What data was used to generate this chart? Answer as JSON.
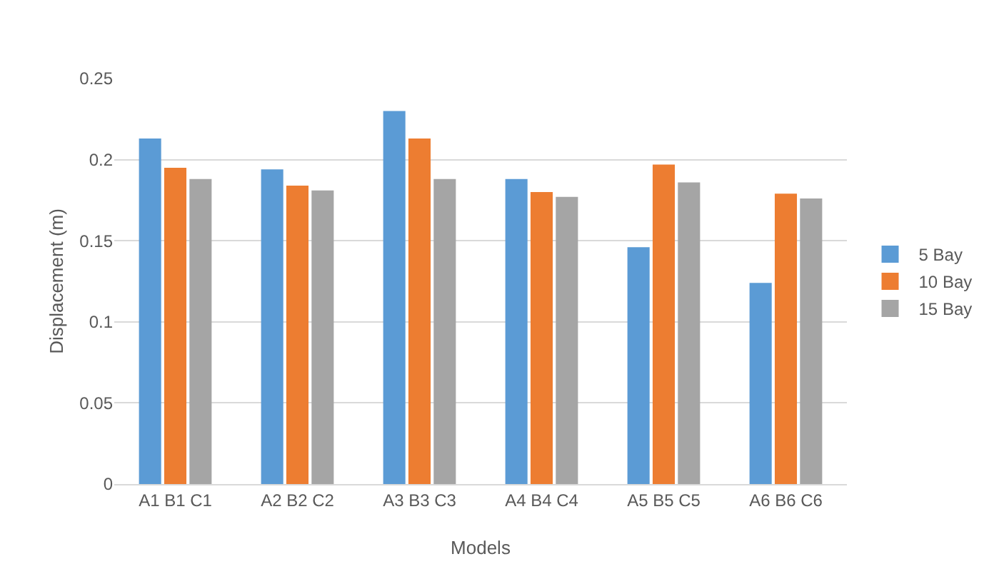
{
  "chart_data": {
    "type": "bar",
    "xlabel": "Models",
    "ylabel": "Displacement (m)",
    "categories": [
      "A1 B1 C1",
      "A2 B2 C2",
      "A3 B3 C3",
      "A4 B4 C4",
      "A5 B5 C5",
      "A6 B6 C6"
    ],
    "series": [
      {
        "name": "5 Bay",
        "color": "#5b9bd5",
        "values": [
          0.213,
          0.194,
          0.23,
          0.188,
          0.146,
          0.124
        ]
      },
      {
        "name": "10 Bay",
        "color": "#ed7d31",
        "values": [
          0.195,
          0.184,
          0.213,
          0.18,
          0.197,
          0.179
        ]
      },
      {
        "name": "15 Bay",
        "color": "#a5a5a5",
        "values": [
          0.188,
          0.181,
          0.188,
          0.177,
          0.186,
          0.176
        ]
      }
    ],
    "ylim": [
      0,
      0.25
    ],
    "yticks": [
      0,
      0.05,
      0.1,
      0.15,
      0.2,
      0.25
    ],
    "grid": "y",
    "legend": "right"
  }
}
